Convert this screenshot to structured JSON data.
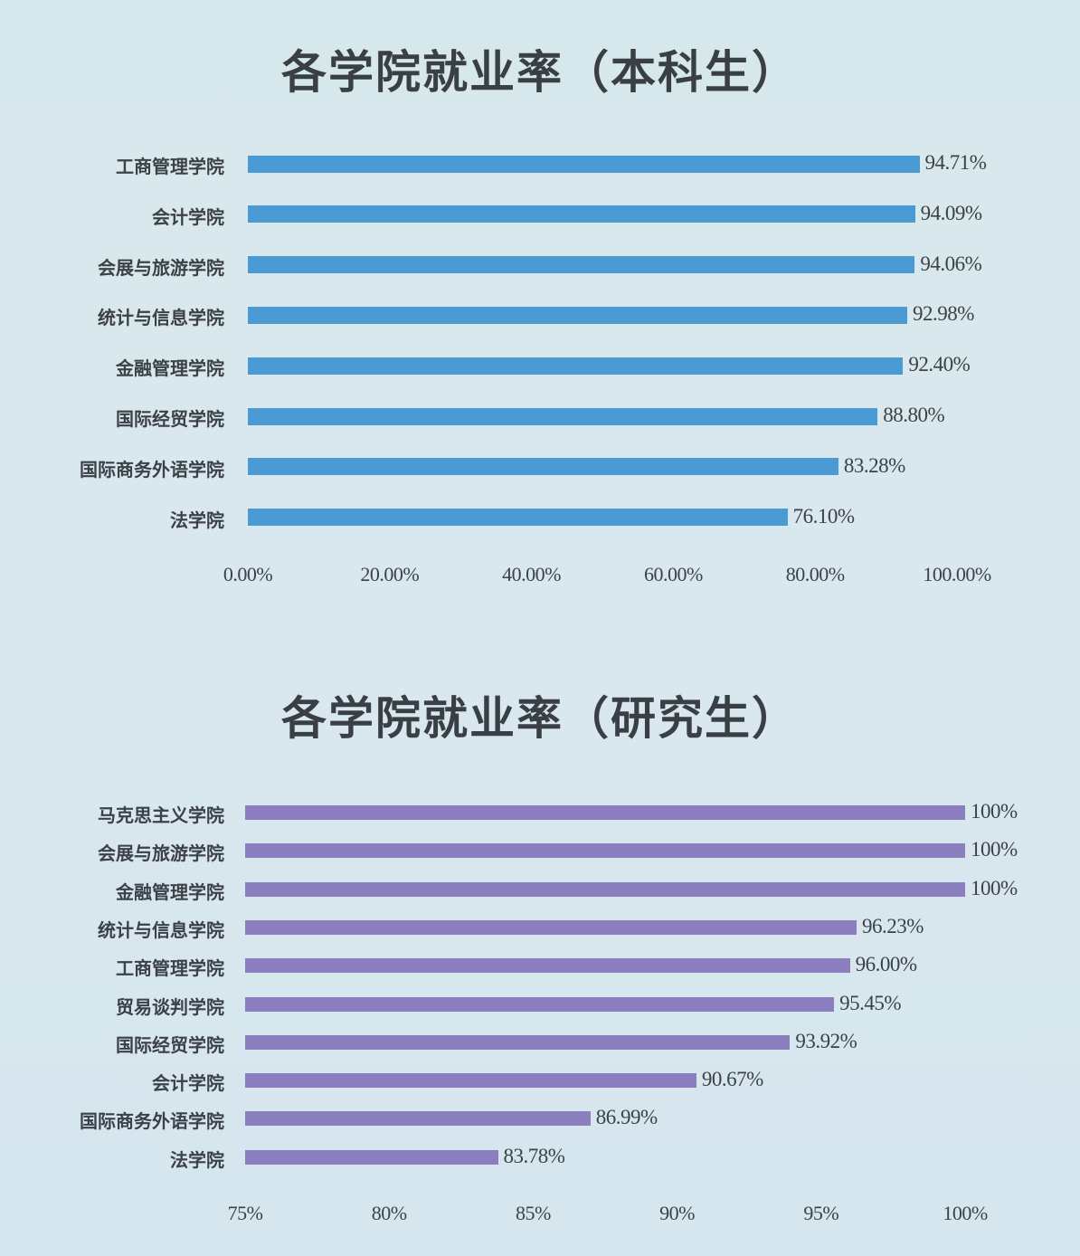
{
  "chart_data": [
    {
      "type": "bar",
      "orientation": "horizontal",
      "title": "各学院就业率（本科生）",
      "xlabel": "",
      "ylabel": "",
      "xlim": [
        0,
        100
      ],
      "ticks": [
        "0.00%",
        "20.00%",
        "40.00%",
        "60.00%",
        "80.00%",
        "100.00%"
      ],
      "grid": false,
      "legend": null,
      "color": "#4a9ad4",
      "categories": [
        "工商管理学院",
        "会计学院",
        "会展与旅游学院",
        "统计与信息学院",
        "金融管理学院",
        "国际经贸学院",
        "国际商务外语学院",
        "法学院"
      ],
      "values": [
        94.71,
        94.09,
        94.06,
        92.98,
        92.4,
        88.8,
        83.28,
        76.1
      ],
      "value_labels": [
        "94.71%",
        "94.09%",
        "94.06%",
        "92.98%",
        "92.40%",
        "88.80%",
        "83.28%",
        "76.10%"
      ]
    },
    {
      "type": "bar",
      "orientation": "horizontal",
      "title": "各学院就业率（研究生）",
      "xlabel": "",
      "ylabel": "",
      "xlim": [
        75,
        100
      ],
      "ticks": [
        "75%",
        "80%",
        "85%",
        "90%",
        "95%",
        "100%"
      ],
      "grid": false,
      "legend": null,
      "color": "#8c7fbf",
      "categories": [
        "马克思主义学院",
        "会展与旅游学院",
        "金融管理学院",
        "统计与信息学院",
        "工商管理学院",
        "贸易谈判学院",
        "国际经贸学院",
        "会计学院",
        "国际商务外语学院",
        "法学院"
      ],
      "values": [
        100,
        100,
        100,
        96.23,
        96.0,
        95.45,
        93.92,
        90.67,
        86.99,
        83.78
      ],
      "value_labels": [
        "100%",
        "100%",
        "100%",
        "96.23%",
        "96.00%",
        "95.45%",
        "93.92%",
        "90.67%",
        "86.99%",
        "83.78%"
      ]
    }
  ]
}
